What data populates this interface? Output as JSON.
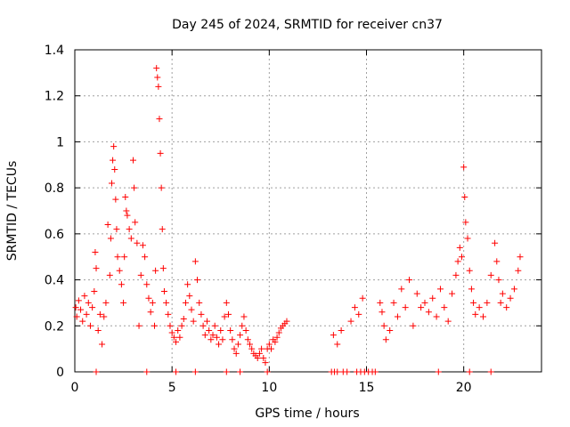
{
  "chart_data": {
    "type": "scatter",
    "title": "Day 245 of 2024, SRMTID for receiver cn37",
    "xlabel": "GPS time / hours",
    "ylabel": "SRMTID / TECUs",
    "xlim": [
      0,
      24
    ],
    "ylim": [
      0,
      1.4
    ],
    "xticks": [
      "0",
      "5",
      "10",
      "15",
      "20"
    ],
    "yticks": [
      "0",
      "0.2",
      "0.4",
      "0.6",
      "0.8",
      "1",
      "1.2",
      "1.4"
    ],
    "grid": true,
    "marker": "+",
    "color": "#ff0000",
    "series": [
      {
        "name": "SRMTID",
        "points": [
          [
            0.05,
            0.28
          ],
          [
            0.1,
            0.24
          ],
          [
            0.2,
            0.31
          ],
          [
            0.3,
            0.27
          ],
          [
            0.4,
            0.22
          ],
          [
            0.5,
            0.33
          ],
          [
            0.6,
            0.25
          ],
          [
            0.7,
            0.3
          ],
          [
            0.8,
            0.2
          ],
          [
            0.9,
            0.28
          ],
          [
            1.0,
            0.35
          ],
          [
            1.05,
            0.52
          ],
          [
            1.1,
            0.45
          ],
          [
            1.2,
            0.18
          ],
          [
            1.3,
            0.25
          ],
          [
            1.4,
            0.12
          ],
          [
            1.5,
            0.24
          ],
          [
            1.6,
            0.3
          ],
          [
            1.7,
            0.64
          ],
          [
            1.8,
            0.42
          ],
          [
            1.85,
            0.58
          ],
          [
            1.9,
            0.82
          ],
          [
            1.95,
            0.92
          ],
          [
            2.0,
            0.98
          ],
          [
            2.05,
            0.88
          ],
          [
            2.1,
            0.75
          ],
          [
            2.15,
            0.62
          ],
          [
            2.2,
            0.5
          ],
          [
            2.3,
            0.44
          ],
          [
            2.4,
            0.38
          ],
          [
            2.5,
            0.3
          ],
          [
            2.55,
            0.5
          ],
          [
            2.6,
            0.76
          ],
          [
            2.65,
            0.7
          ],
          [
            2.7,
            0.68
          ],
          [
            2.8,
            0.62
          ],
          [
            2.9,
            0.58
          ],
          [
            3.0,
            0.92
          ],
          [
            3.05,
            0.8
          ],
          [
            3.1,
            0.65
          ],
          [
            3.2,
            0.56
          ],
          [
            3.3,
            0.2
          ],
          [
            3.4,
            0.42
          ],
          [
            3.5,
            0.55
          ],
          [
            3.6,
            0.5
          ],
          [
            3.7,
            0.38
          ],
          [
            3.8,
            0.32
          ],
          [
            3.9,
            0.26
          ],
          [
            4.0,
            0.3
          ],
          [
            4.1,
            0.2
          ],
          [
            4.15,
            0.44
          ],
          [
            4.2,
            1.32
          ],
          [
            4.25,
            1.28
          ],
          [
            4.3,
            1.24
          ],
          [
            4.35,
            1.1
          ],
          [
            4.4,
            0.95
          ],
          [
            4.45,
            0.8
          ],
          [
            4.5,
            0.62
          ],
          [
            4.55,
            0.45
          ],
          [
            4.6,
            0.35
          ],
          [
            4.7,
            0.3
          ],
          [
            4.8,
            0.25
          ],
          [
            4.9,
            0.2
          ],
          [
            5.0,
            0.17
          ],
          [
            5.1,
            0.15
          ],
          [
            5.2,
            0.13
          ],
          [
            5.3,
            0.18
          ],
          [
            5.4,
            0.15
          ],
          [
            5.5,
            0.2
          ],
          [
            5.6,
            0.23
          ],
          [
            5.7,
            0.3
          ],
          [
            5.8,
            0.38
          ],
          [
            5.9,
            0.33
          ],
          [
            6.0,
            0.27
          ],
          [
            6.1,
            0.22
          ],
          [
            6.2,
            0.48
          ],
          [
            6.3,
            0.4
          ],
          [
            6.4,
            0.3
          ],
          [
            6.5,
            0.25
          ],
          [
            6.6,
            0.2
          ],
          [
            6.7,
            0.16
          ],
          [
            6.8,
            0.22
          ],
          [
            6.9,
            0.18
          ],
          [
            7.0,
            0.14
          ],
          [
            7.1,
            0.16
          ],
          [
            7.2,
            0.2
          ],
          [
            7.3,
            0.15
          ],
          [
            7.4,
            0.12
          ],
          [
            7.5,
            0.18
          ],
          [
            7.6,
            0.14
          ],
          [
            7.7,
            0.24
          ],
          [
            7.8,
            0.3
          ],
          [
            7.9,
            0.25
          ],
          [
            8.0,
            0.18
          ],
          [
            8.1,
            0.14
          ],
          [
            8.2,
            0.1
          ],
          [
            8.3,
            0.08
          ],
          [
            8.4,
            0.12
          ],
          [
            8.5,
            0.16
          ],
          [
            8.6,
            0.2
          ],
          [
            8.7,
            0.24
          ],
          [
            8.8,
            0.18
          ],
          [
            8.9,
            0.14
          ],
          [
            9.0,
            0.12
          ],
          [
            9.1,
            0.1
          ],
          [
            9.2,
            0.08
          ],
          [
            9.3,
            0.07
          ],
          [
            9.4,
            0.06
          ],
          [
            9.5,
            0.08
          ],
          [
            9.6,
            0.1
          ],
          [
            9.7,
            0.06
          ],
          [
            9.8,
            0.04
          ],
          [
            9.9,
            0.1
          ],
          [
            10.0,
            0.12
          ],
          [
            10.1,
            0.1
          ],
          [
            10.2,
            0.14
          ],
          [
            10.3,
            0.13
          ],
          [
            10.4,
            0.15
          ],
          [
            10.5,
            0.17
          ],
          [
            10.6,
            0.19
          ],
          [
            10.7,
            0.2
          ],
          [
            10.8,
            0.21
          ],
          [
            10.9,
            0.22
          ],
          [
            13.3,
            0.16
          ],
          [
            13.5,
            0.12
          ],
          [
            13.7,
            0.18
          ],
          [
            14.2,
            0.22
          ],
          [
            14.4,
            0.28
          ],
          [
            14.6,
            0.25
          ],
          [
            14.8,
            0.32
          ],
          [
            15.7,
            0.3
          ],
          [
            15.8,
            0.26
          ],
          [
            15.9,
            0.2
          ],
          [
            16.0,
            0.14
          ],
          [
            16.2,
            0.18
          ],
          [
            16.4,
            0.3
          ],
          [
            16.6,
            0.24
          ],
          [
            16.8,
            0.36
          ],
          [
            17.0,
            0.28
          ],
          [
            17.2,
            0.4
          ],
          [
            17.4,
            0.2
          ],
          [
            17.6,
            0.34
          ],
          [
            17.8,
            0.28
          ],
          [
            18.0,
            0.3
          ],
          [
            18.2,
            0.26
          ],
          [
            18.4,
            0.32
          ],
          [
            18.6,
            0.24
          ],
          [
            18.8,
            0.36
          ],
          [
            19.0,
            0.28
          ],
          [
            19.2,
            0.22
          ],
          [
            19.4,
            0.34
          ],
          [
            19.6,
            0.42
          ],
          [
            19.7,
            0.48
          ],
          [
            19.8,
            0.54
          ],
          [
            19.9,
            0.5
          ],
          [
            20.0,
            0.89
          ],
          [
            20.05,
            0.76
          ],
          [
            20.1,
            0.65
          ],
          [
            20.2,
            0.58
          ],
          [
            20.3,
            0.44
          ],
          [
            20.4,
            0.36
          ],
          [
            20.5,
            0.3
          ],
          [
            20.6,
            0.25
          ],
          [
            20.8,
            0.28
          ],
          [
            21.0,
            0.24
          ],
          [
            21.2,
            0.3
          ],
          [
            21.4,
            0.42
          ],
          [
            21.6,
            0.56
          ],
          [
            21.7,
            0.48
          ],
          [
            21.8,
            0.4
          ],
          [
            21.9,
            0.3
          ],
          [
            22.0,
            0.34
          ],
          [
            22.2,
            0.28
          ],
          [
            22.4,
            0.32
          ],
          [
            22.6,
            0.36
          ],
          [
            22.8,
            0.44
          ],
          [
            22.9,
            0.5
          ],
          [
            1.1,
            0
          ],
          [
            3.7,
            0
          ],
          [
            5.2,
            0
          ],
          [
            6.2,
            0
          ],
          [
            7.8,
            0
          ],
          [
            8.5,
            0
          ],
          [
            9.9,
            0
          ],
          [
            13.2,
            0
          ],
          [
            13.35,
            0
          ],
          [
            13.5,
            0
          ],
          [
            13.8,
            0
          ],
          [
            14.0,
            0
          ],
          [
            14.5,
            0
          ],
          [
            14.7,
            0
          ],
          [
            14.9,
            0
          ],
          [
            15.1,
            0
          ],
          [
            15.3,
            0
          ],
          [
            15.45,
            0
          ],
          [
            18.7,
            0
          ],
          [
            20.3,
            0
          ],
          [
            21.4,
            0
          ]
        ]
      }
    ]
  }
}
